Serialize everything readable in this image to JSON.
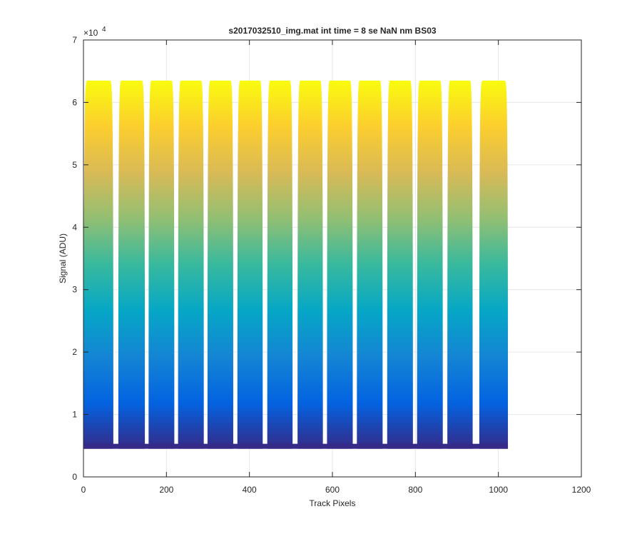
{
  "chart_data": {
    "type": "line",
    "title": "s2017032510_img.mat int time = 8 se  NaN nm BS03",
    "xlabel": "Track Pixels",
    "ylabel": "Signal (ADU)",
    "y_exponent_label": "×10",
    "y_exponent_power": "4",
    "xlim": [
      0,
      1200
    ],
    "ylim": [
      0,
      70000
    ],
    "x_ticks": [
      0,
      200,
      400,
      600,
      800,
      1000,
      1200
    ],
    "x_tick_labels": [
      "0",
      "200",
      "400",
      "600",
      "800",
      "1000",
      "1200"
    ],
    "y_ticks": [
      0,
      10000,
      20000,
      30000,
      40000,
      50000,
      60000,
      70000
    ],
    "y_tick_labels": [
      "0",
      "1",
      "2",
      "3",
      "4",
      "5",
      "6",
      "7"
    ],
    "grid": true,
    "colormap": [
      "#352a87",
      "#0363e1",
      "#1485d4",
      "#06a7c6",
      "#38b99e",
      "#92bf73",
      "#d9ba56",
      "#fcce2e",
      "#f9fb0e"
    ],
    "baseline": 4500,
    "saturation_level": 63500,
    "blocks": [
      {
        "x_start": 1,
        "x_end": 72,
        "dip_value": 5000
      },
      {
        "x_start": 84,
        "x_end": 148,
        "dip_value": 6000
      },
      {
        "x_start": 157,
        "x_end": 219,
        "dip_value": 6500
      },
      {
        "x_start": 228,
        "x_end": 290,
        "dip_value": 7000
      },
      {
        "x_start": 299,
        "x_end": 361,
        "dip_value": 7200
      },
      {
        "x_start": 371,
        "x_end": 432,
        "dip_value": 7500
      },
      {
        "x_start": 443,
        "x_end": 504,
        "dip_value": 7000
      },
      {
        "x_start": 516,
        "x_end": 577,
        "dip_value": 7000
      },
      {
        "x_start": 587,
        "x_end": 649,
        "dip_value": 7000
      },
      {
        "x_start": 659,
        "x_end": 721,
        "dip_value": 6500
      },
      {
        "x_start": 732,
        "x_end": 794,
        "dip_value": 6000
      },
      {
        "x_start": 804,
        "x_end": 866,
        "dip_value": 5500
      },
      {
        "x_start": 877,
        "x_end": 938,
        "dip_value": 5000
      },
      {
        "x_start": 954,
        "x_end": 1023,
        "dip_value": 4800
      }
    ]
  }
}
